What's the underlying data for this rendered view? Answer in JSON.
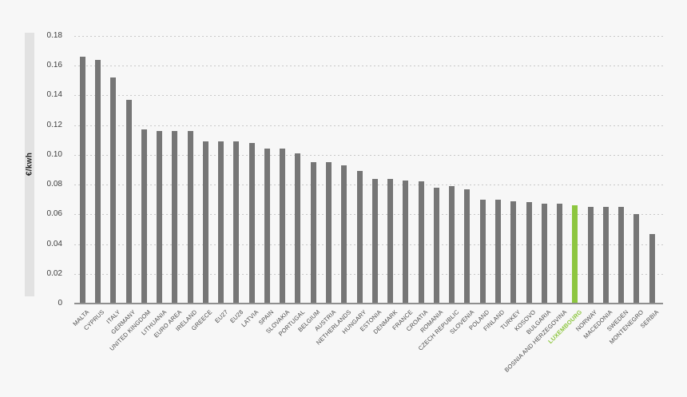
{
  "page": {
    "background_color": "#f7f7f7",
    "band_color": "#e2e2e2",
    "axis_line_color": "#8f8f8f",
    "gridline_color": "#c8c8c8"
  },
  "y_axis": {
    "unit_label": "€/kwh",
    "ticks": [
      {
        "label": "0.18",
        "value": 0.18
      },
      {
        "label": "0.16",
        "value": 0.16
      },
      {
        "label": "0.14",
        "value": 0.14
      },
      {
        "label": "0.12",
        "value": 0.12
      },
      {
        "label": "0.10",
        "value": 0.1
      },
      {
        "label": "0.08",
        "value": 0.08
      },
      {
        "label": "0.06",
        "value": 0.06
      },
      {
        "label": "0.04",
        "value": 0.04
      },
      {
        "label": "0.02",
        "value": 0.02
      },
      {
        "label": "0",
        "value": 0
      }
    ]
  },
  "chart_data": {
    "type": "bar",
    "title": "",
    "xlabel": "",
    "ylabel": "€/kwh",
    "ylim": [
      0,
      0.18
    ],
    "grid": "horizontal dotted lines at every 0.02",
    "legend": "none",
    "bar_color": "#767676",
    "highlight_color": "#8dc63f",
    "highlighted_category": "LUXEMBOURG",
    "categories": [
      "MALTA",
      "CYPRUS",
      "ITALY",
      "GERMANY",
      "UNITED KINGDOM",
      "LITHUANIA",
      "EURO AREA",
      "IRELAND",
      "GREECE",
      "EU27",
      "EU28",
      "LATVIA",
      "SPAIN",
      "SLOVAKIA",
      "PORTUGAL",
      "BELGIUM",
      "AUSTRIA",
      "NETHERLANDS",
      "HUNGARY",
      "ESTONIA",
      "DENMARK",
      "FRANCE",
      "CROATIA",
      "ROMANIA",
      "CZECH REPUBLIC",
      "SLOVENIA",
      "POLAND",
      "FINLAND",
      "TURKEY",
      "KOSOVO",
      "BULGARIA",
      "BOSNIA AND HERZEGOVINA",
      "LUXEMBOURG",
      "NORWAY",
      "MACEDONIA",
      "SWEDEN",
      "MONTENEGRO",
      "SERBIA"
    ],
    "values": [
      0.166,
      0.164,
      0.152,
      0.137,
      0.117,
      0.116,
      0.116,
      0.116,
      0.109,
      0.109,
      0.109,
      0.108,
      0.104,
      0.104,
      0.101,
      0.095,
      0.095,
      0.093,
      0.089,
      0.084,
      0.084,
      0.083,
      0.082,
      0.078,
      0.079,
      0.077,
      0.07,
      0.07,
      0.069,
      0.068,
      0.067,
      0.067,
      0.066,
      0.065,
      0.065,
      0.065,
      0.06,
      0.047
    ]
  }
}
